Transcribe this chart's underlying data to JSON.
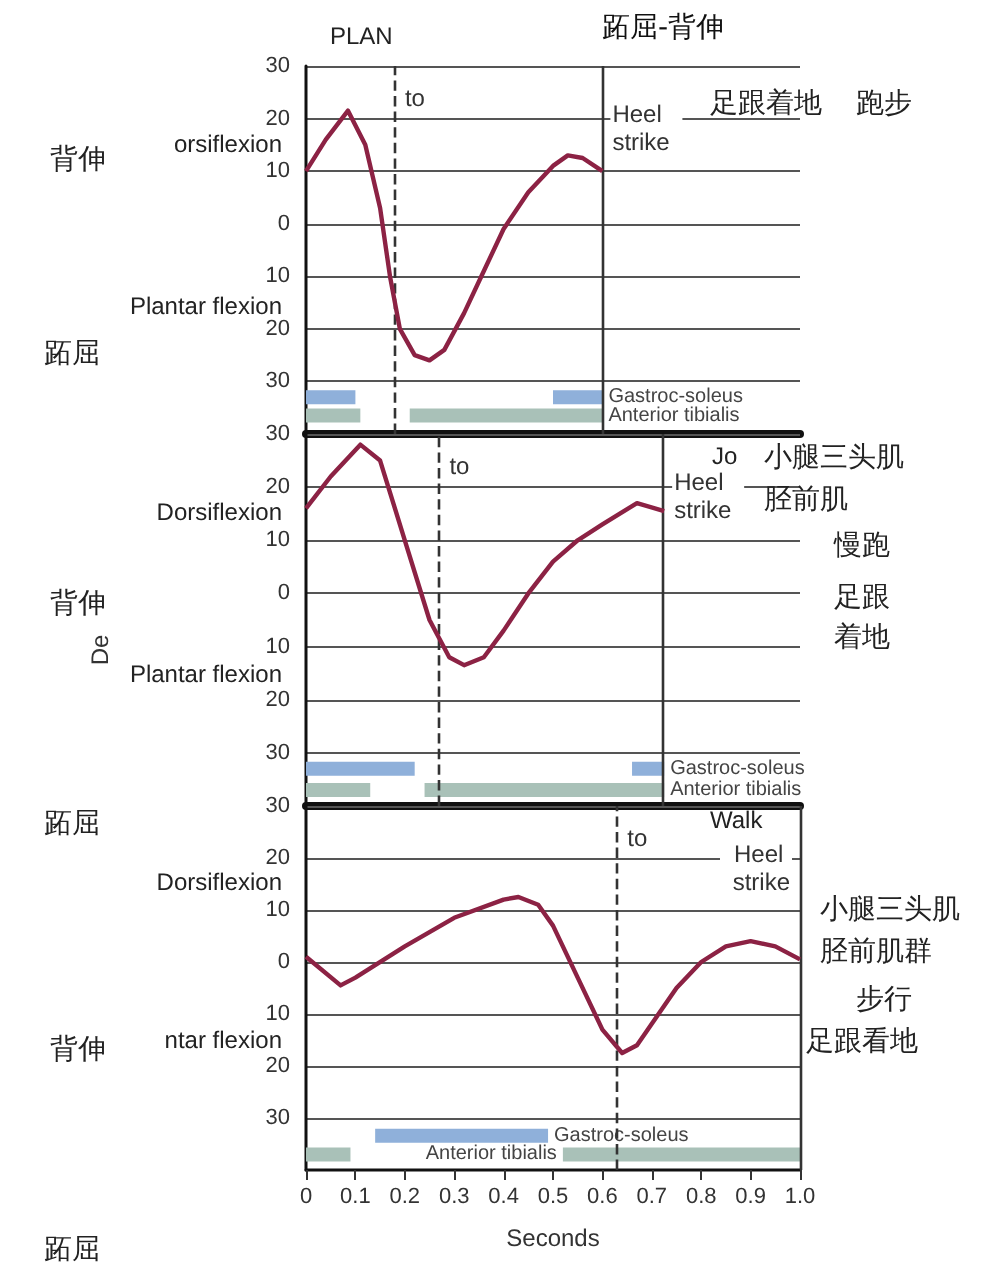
{
  "chart_data": [
    {
      "type": "line",
      "title": "跖屈-背伸",
      "xlim": [
        0,
        1
      ],
      "ylim": [
        -40,
        30
      ],
      "yticks": [
        {
          "value": -30,
          "label": "30"
        },
        {
          "value": -20,
          "label": "20"
        },
        {
          "value": -10,
          "label": "10"
        },
        0,
        10,
        20,
        30
      ],
      "grid": "y",
      "tick_labels": "y",
      "annotations": [
        "PLAN",
        "背伸",
        "跖屈",
        "orsiflexion",
        "Plantar flexion",
        "足跟着地",
        "跑步"
      ],
      "ref_lines": [
        {
          "axis": "x",
          "value": 0.18,
          "label": "to",
          "line_style": "dashed"
        },
        {
          "axis": "x",
          "value": 0.6,
          "label": "Heel strike",
          "line_style": "solid"
        }
      ],
      "series": [
        {
          "color": "#8c2244",
          "x": [
            0,
            0.04,
            0.085,
            0.12,
            0.15,
            0.17,
            0.19,
            0.22,
            0.25,
            0.28,
            0.32,
            0.36,
            0.4,
            0.45,
            0.5,
            0.53,
            0.56,
            0.6
          ],
          "values": [
            10,
            16,
            21.5,
            15,
            3,
            -10,
            -20,
            -25,
            -26,
            -24,
            -17,
            -9,
            -1,
            6,
            11,
            13,
            12.5,
            10
          ]
        },
        {
          "name": "Gastroc-soleus",
          "color": "#8fb0da",
          "x": [
            0,
            0.1,
            null,
            0.5,
            0.6
          ],
          "values": [
            -33,
            -33,
            null,
            -33,
            -33
          ]
        },
        {
          "name": "Anterior tibialis",
          "color": "#a9c1b8",
          "x": [
            0,
            0.11,
            null,
            0.21,
            0.6
          ],
          "values": [
            -36.5,
            -36.5,
            null,
            -36.5,
            -36.5
          ]
        }
      ]
    },
    {
      "type": "line",
      "ylabel": "De",
      "xlim": [
        0,
        1
      ],
      "ylim": [
        -40,
        30
      ],
      "yticks": [
        {
          "value": -30,
          "label": "30"
        },
        {
          "value": -20,
          "label": "20"
        },
        {
          "value": -10,
          "label": "10"
        },
        0,
        10,
        20,
        30
      ],
      "grid": "y",
      "tick_labels": "y",
      "annotations": [
        "Jo",
        "小腿三头肌",
        "胫前肌",
        "慢跑",
        "足跟着地",
        "背伸",
        "Dorsiflexion",
        "Plantar flexion",
        "跖屈"
      ],
      "ref_lines": [
        {
          "axis": "x",
          "value": 0.27,
          "label": "to",
          "line_style": "dashed"
        },
        {
          "axis": "x",
          "value": 0.725,
          "label": "Heel strike",
          "line_style": "solid"
        }
      ],
      "series": [
        {
          "color": "#8c2244",
          "x": [
            0,
            0.05,
            0.11,
            0.15,
            0.2,
            0.25,
            0.29,
            0.32,
            0.36,
            0.4,
            0.45,
            0.5,
            0.55,
            0.6,
            0.67,
            0.725
          ],
          "values": [
            16,
            22,
            28,
            25,
            10,
            -5,
            -12,
            -13.5,
            -12,
            -7,
            0,
            6,
            10,
            13,
            17,
            15.5
          ]
        },
        {
          "name": "Gastroc-soleus",
          "color": "#8fb0da",
          "x": [
            0,
            0.22,
            null,
            0.66,
            0.725
          ],
          "values": [
            -33,
            -33,
            null,
            -33,
            -33
          ]
        },
        {
          "name": "Anterior tibialis",
          "color": "#a9c1b8",
          "x": [
            0,
            0.13,
            null,
            0.24,
            0.725
          ],
          "values": [
            -37,
            -37,
            null,
            -37,
            -37
          ]
        }
      ]
    },
    {
      "type": "line",
      "xlabel": "Seconds",
      "xlim": [
        0,
        1
      ],
      "xticks": [
        0,
        0.1,
        0.2,
        0.3,
        0.4,
        0.5,
        0.6,
        0.7,
        0.8,
        0.9,
        {
          "value": 1,
          "label": "1.0"
        }
      ],
      "ylim": [
        -40,
        30
      ],
      "yticks": [
        {
          "value": -30,
          "label": "30"
        },
        {
          "value": -20,
          "label": "20"
        },
        {
          "value": -10,
          "label": "10"
        },
        0,
        10,
        20,
        30
      ],
      "grid": "y",
      "annotations": [
        "Walk",
        "小腿三头肌",
        "胫前肌群",
        "步行",
        "足跟看地",
        "Dorsiflexion",
        "ntar flexion",
        "背伸",
        "跖屈"
      ],
      "ref_lines": [
        {
          "axis": "x",
          "value": 0.63,
          "label": "to",
          "line_style": "dashed"
        },
        {
          "axis": "x",
          "value": 1,
          "label": "Heel strike",
          "line_style": "solid"
        }
      ],
      "series": [
        {
          "color": "#8c2244",
          "x": [
            0,
            0.07,
            0.1,
            0.2,
            0.3,
            0.4,
            0.43,
            0.47,
            0.5,
            0.55,
            0.6,
            0.64,
            0.67,
            0.75,
            0.8,
            0.85,
            0.9,
            0.95,
            1
          ],
          "values": [
            1,
            -4.5,
            -3,
            3,
            8.5,
            12,
            12.5,
            11,
            7,
            -3,
            -13,
            -17.5,
            -16,
            -5,
            0,
            3,
            4,
            3,
            0.5
          ]
        },
        {
          "name": "Gastroc-soleus",
          "color": "#8fb0da",
          "x": [
            0.14,
            0.49
          ],
          "values": [
            -33.4,
            -33.4
          ]
        },
        {
          "name": "Anterior tibialis",
          "color": "#a9c1b8",
          "x": [
            0,
            0.09,
            null,
            0.52,
            1
          ],
          "values": [
            -37,
            -37,
            null,
            -37,
            -37
          ]
        }
      ]
    }
  ]
}
